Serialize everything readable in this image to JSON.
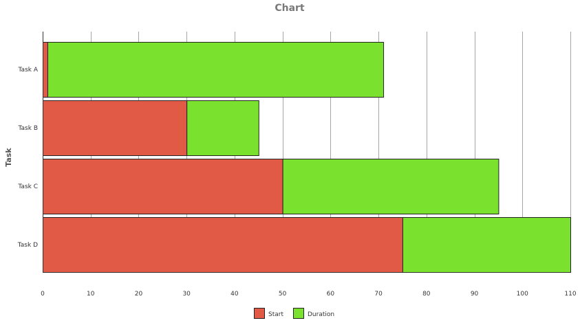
{
  "chart_data": {
    "type": "bar",
    "orientation": "horizontal",
    "stacked": true,
    "title": "Chart",
    "xlabel": "",
    "ylabel": "Task",
    "categories": [
      "Task A",
      "Task B",
      "Task C",
      "Task D"
    ],
    "series": [
      {
        "name": "Start",
        "color": "#e05a46",
        "values": [
          1,
          30,
          50,
          75
        ]
      },
      {
        "name": "Duration",
        "color": "#7ae22e",
        "values": [
          70,
          15,
          45,
          35
        ]
      }
    ],
    "xlim": [
      0,
      110
    ],
    "x_ticks": [
      0,
      10,
      20,
      30,
      40,
      50,
      60,
      70,
      80,
      90,
      100,
      110
    ],
    "grid": true,
    "legend": "bottom-center"
  }
}
